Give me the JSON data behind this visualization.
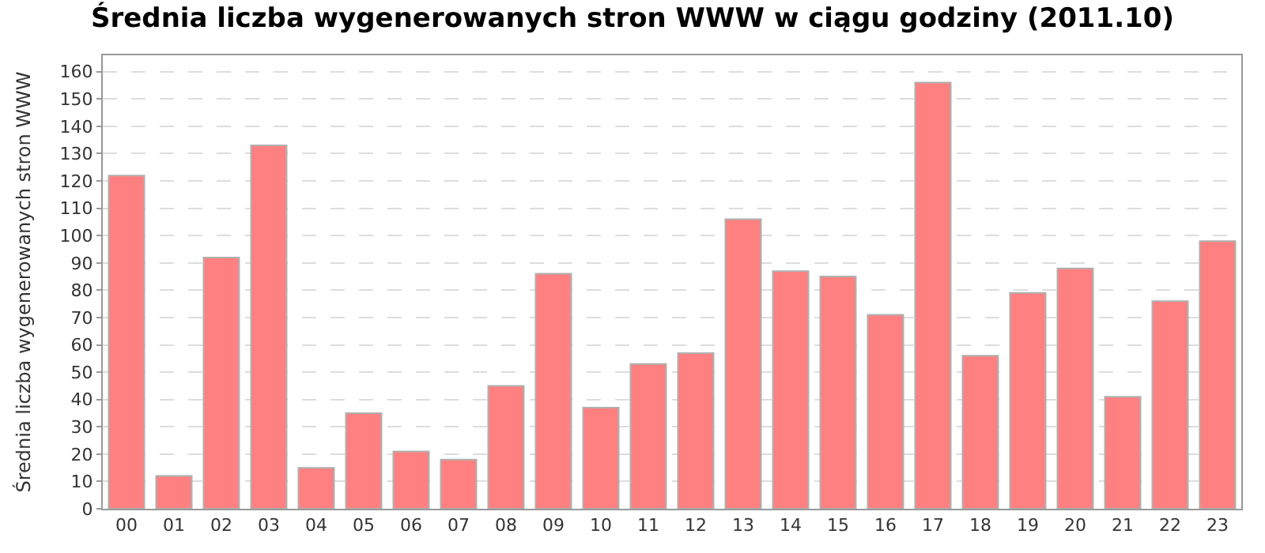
{
  "chart_data": {
    "type": "bar",
    "title": "Średnia liczba wygenerowanych stron WWW w ciągu godziny (2011.10)",
    "ylabel": "Średnia liczba wygenerowanych stron WWW",
    "categories": [
      "00",
      "01",
      "02",
      "03",
      "04",
      "05",
      "06",
      "07",
      "08",
      "09",
      "10",
      "11",
      "12",
      "13",
      "14",
      "15",
      "16",
      "17",
      "18",
      "19",
      "20",
      "21",
      "22",
      "23"
    ],
    "values": [
      122,
      12,
      92,
      133,
      15,
      35,
      21,
      18,
      45,
      86,
      37,
      53,
      57,
      106,
      87,
      85,
      71,
      156,
      56,
      79,
      88,
      41,
      76,
      98
    ],
    "color": "#ff8080",
    "ylim": [
      0,
      166
    ],
    "yticks": [
      0,
      10,
      20,
      30,
      40,
      50,
      60,
      70,
      80,
      90,
      100,
      110,
      120,
      130,
      140,
      150,
      160
    ],
    "grid": "y"
  }
}
